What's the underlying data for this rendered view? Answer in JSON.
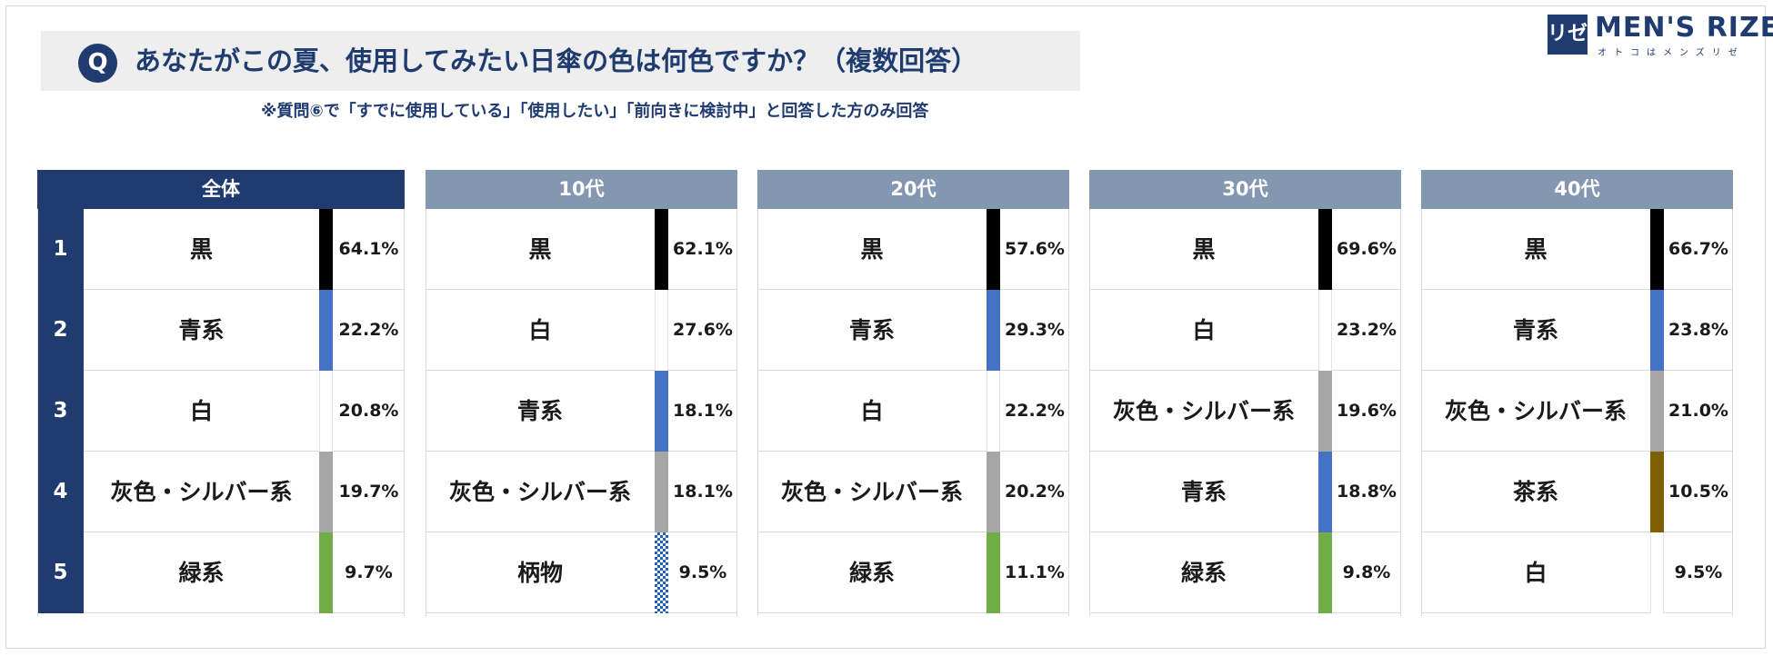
{
  "question": {
    "badge": "Q",
    "text": "あなたがこの夏、使用してみたい日傘の色は何色ですか？（複数回答）",
    "note": "※質問⑥で「すでに使用している」「使用したい」「前向きに検討中」と回答した方のみ回答"
  },
  "logo": {
    "mark": "リゼ",
    "name": "MEN'S RIZE",
    "tagline": "オトコはメンズリゼ"
  },
  "colors": {
    "navy": "#1f3b6f",
    "header_gray": "#8497b0",
    "black": "#000000",
    "blue": "#4472c4",
    "white": "#ffffff",
    "gray": "#a6a6a6",
    "green": "#70ad47",
    "brown": "#7f6000",
    "pattern": "#1f5fbf"
  },
  "chart_data": {
    "type": "table",
    "unit": "%",
    "ranks": [
      "1",
      "2",
      "3",
      "4",
      "5"
    ],
    "panels": [
      {
        "header": "全体",
        "rows": [
          {
            "name": "黒",
            "value": "64.1%",
            "color": "black"
          },
          {
            "name": "青系",
            "value": "22.2%",
            "color": "blue"
          },
          {
            "name": "白",
            "value": "20.8%",
            "color": "white"
          },
          {
            "name": "灰色・シルバー系",
            "value": "19.7%",
            "color": "gray"
          },
          {
            "name": "緑系",
            "value": "9.7%",
            "color": "green"
          }
        ]
      },
      {
        "header": "10代",
        "rows": [
          {
            "name": "黒",
            "value": "62.1%",
            "color": "black"
          },
          {
            "name": "白",
            "value": "27.6%",
            "color": "white"
          },
          {
            "name": "青系",
            "value": "18.1%",
            "color": "blue"
          },
          {
            "name": "灰色・シルバー系",
            "value": "18.1%",
            "color": "gray"
          },
          {
            "name": "柄物",
            "value": "9.5%",
            "color": "pattern"
          }
        ]
      },
      {
        "header": "20代",
        "rows": [
          {
            "name": "黒",
            "value": "57.6%",
            "color": "black"
          },
          {
            "name": "青系",
            "value": "29.3%",
            "color": "blue"
          },
          {
            "name": "白",
            "value": "22.2%",
            "color": "white"
          },
          {
            "name": "灰色・シルバー系",
            "value": "20.2%",
            "color": "gray"
          },
          {
            "name": "緑系",
            "value": "11.1%",
            "color": "green"
          }
        ]
      },
      {
        "header": "30代",
        "rows": [
          {
            "name": "黒",
            "value": "69.6%",
            "color": "black"
          },
          {
            "name": "白",
            "value": "23.2%",
            "color": "white"
          },
          {
            "name": "灰色・シルバー系",
            "value": "19.6%",
            "color": "gray"
          },
          {
            "name": "青系",
            "value": "18.8%",
            "color": "blue"
          },
          {
            "name": "緑系",
            "value": "9.8%",
            "color": "green"
          }
        ]
      },
      {
        "header": "40代",
        "rows": [
          {
            "name": "黒",
            "value": "66.7%",
            "color": "black"
          },
          {
            "name": "青系",
            "value": "23.8%",
            "color": "blue"
          },
          {
            "name": "灰色・シルバー系",
            "value": "21.0%",
            "color": "gray"
          },
          {
            "name": "茶系",
            "value": "10.5%",
            "color": "brown"
          },
          {
            "name": "白",
            "value": "9.5%",
            "color": "white"
          }
        ]
      }
    ]
  }
}
